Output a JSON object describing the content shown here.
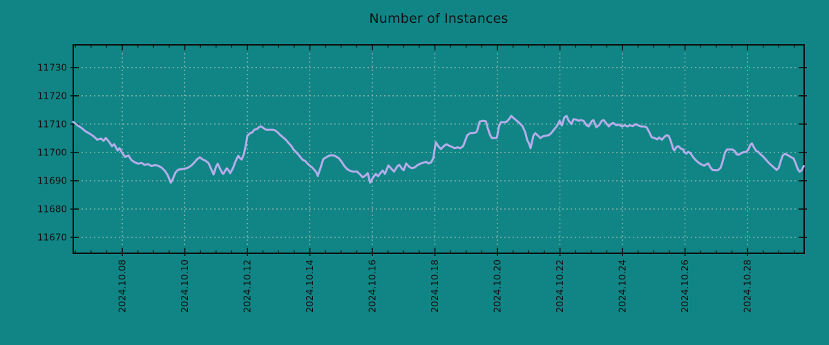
{
  "chart_data": {
    "type": "line",
    "title": "Number of Instances",
    "xlabel": "",
    "ylabel": "",
    "grid": "dashed",
    "legend": "none",
    "x_axis": {
      "time_origin": "2024.10.06",
      "t_min_days": 0.43,
      "t_max_days": 23.81,
      "major_tick_t": [
        2,
        4,
        6,
        8,
        10,
        12,
        14,
        16,
        18,
        20,
        22
      ],
      "tick_labels": [
        "2024.10.08",
        "2024.10.10",
        "2024.10.12",
        "2024.10.14",
        "2024.10.16",
        "2024.10.18",
        "2024.10.20",
        "2024.10.22",
        "2024.10.24",
        "2024.10.26",
        "2024.10.28"
      ],
      "minor_step_days": 0.5,
      "label_rotation_deg": 90
    },
    "y_axis": {
      "min": 11664.4,
      "max": 11738.0,
      "major_ticks": [
        11670,
        11680,
        11690,
        11700,
        11710,
        11720,
        11730
      ],
      "tick_labels": [
        "11670",
        "11680",
        "11690",
        "11700",
        "11710",
        "11720",
        "11730"
      ]
    },
    "series": [
      {
        "name": "instances",
        "points": [
          [
            0.43,
            11710.8
          ],
          [
            0.56,
            11709.6
          ],
          [
            0.7,
            11708.6
          ],
          [
            0.83,
            11707.4
          ],
          [
            0.96,
            11706.6
          ],
          [
            1.09,
            11705.6
          ],
          [
            1.2,
            11704.5
          ],
          [
            1.32,
            11704.9
          ],
          [
            1.4,
            11704.1
          ],
          [
            1.47,
            11705.1
          ],
          [
            1.58,
            11703.7
          ],
          [
            1.67,
            11702.2
          ],
          [
            1.74,
            11702.9
          ],
          [
            1.85,
            11700.7
          ],
          [
            1.91,
            11701.5
          ],
          [
            2.0,
            11699.8
          ],
          [
            2.09,
            11698.4
          ],
          [
            2.2,
            11698.9
          ],
          [
            2.29,
            11697.3
          ],
          [
            2.4,
            11696.5
          ],
          [
            2.51,
            11696.0
          ],
          [
            2.62,
            11696.3
          ],
          [
            2.71,
            11695.6
          ],
          [
            2.82,
            11695.9
          ],
          [
            2.93,
            11695.2
          ],
          [
            3.04,
            11695.5
          ],
          [
            3.15,
            11695.3
          ],
          [
            3.26,
            11694.6
          ],
          [
            3.37,
            11693.4
          ],
          [
            3.46,
            11691.8
          ],
          [
            3.55,
            11689.3
          ],
          [
            3.61,
            11690.5
          ],
          [
            3.7,
            11692.9
          ],
          [
            3.79,
            11693.9
          ],
          [
            3.9,
            11694.1
          ],
          [
            4.01,
            11694.3
          ],
          [
            4.1,
            11694.6
          ],
          [
            4.21,
            11695.4
          ],
          [
            4.3,
            11696.4
          ],
          [
            4.39,
            11697.6
          ],
          [
            4.48,
            11698.3
          ],
          [
            4.56,
            11697.6
          ],
          [
            4.67,
            11697.0
          ],
          [
            4.76,
            11696.2
          ],
          [
            4.85,
            11694.0
          ],
          [
            4.92,
            11692.2
          ],
          [
            5.0,
            11695.0
          ],
          [
            5.05,
            11696.0
          ],
          [
            5.12,
            11694.4
          ],
          [
            5.2,
            11692.7
          ],
          [
            5.23,
            11692.4
          ],
          [
            5.31,
            11693.9
          ],
          [
            5.34,
            11694.4
          ],
          [
            5.43,
            11693.2
          ],
          [
            5.45,
            11692.7
          ],
          [
            5.54,
            11694.4
          ],
          [
            5.6,
            11696.3
          ],
          [
            5.67,
            11698.0
          ],
          [
            5.71,
            11698.8
          ],
          [
            5.76,
            11698.0
          ],
          [
            5.82,
            11697.5
          ],
          [
            5.89,
            11699.5
          ],
          [
            5.95,
            11702.5
          ],
          [
            6.0,
            11705.9
          ],
          [
            6.09,
            11706.8
          ],
          [
            6.16,
            11707.1
          ],
          [
            6.22,
            11708.0
          ],
          [
            6.31,
            11708.3
          ],
          [
            6.38,
            11709.0
          ],
          [
            6.44,
            11709.2
          ],
          [
            6.53,
            11708.5
          ],
          [
            6.6,
            11708.0
          ],
          [
            6.66,
            11708.0
          ],
          [
            6.75,
            11708.0
          ],
          [
            6.82,
            11708.0
          ],
          [
            6.88,
            11707.8
          ],
          [
            6.97,
            11707.1
          ],
          [
            7.04,
            11706.3
          ],
          [
            7.11,
            11705.6
          ],
          [
            7.19,
            11704.9
          ],
          [
            7.26,
            11704.1
          ],
          [
            7.33,
            11703.2
          ],
          [
            7.41,
            11702.2
          ],
          [
            7.48,
            11701.0
          ],
          [
            7.55,
            11700.2
          ],
          [
            7.63,
            11699.3
          ],
          [
            7.7,
            11698.3
          ],
          [
            7.77,
            11697.4
          ],
          [
            7.86,
            11696.9
          ],
          [
            7.92,
            11696.1
          ],
          [
            7.99,
            11695.4
          ],
          [
            8.08,
            11694.6
          ],
          [
            8.14,
            11693.9
          ],
          [
            8.21,
            11692.9
          ],
          [
            8.25,
            11691.7
          ],
          [
            8.34,
            11694.5
          ],
          [
            8.43,
            11697.7
          ],
          [
            8.54,
            11698.4
          ],
          [
            8.65,
            11699.0
          ],
          [
            8.78,
            11698.9
          ],
          [
            8.92,
            11698.0
          ],
          [
            9.01,
            11696.8
          ],
          [
            9.09,
            11695.4
          ],
          [
            9.18,
            11694.2
          ],
          [
            9.27,
            11693.6
          ],
          [
            9.38,
            11693.2
          ],
          [
            9.51,
            11693.2
          ],
          [
            9.6,
            11692.3
          ],
          [
            9.69,
            11691.2
          ],
          [
            9.76,
            11691.7
          ],
          [
            9.85,
            11692.7
          ],
          [
            9.93,
            11689.3
          ],
          [
            10.02,
            11691.2
          ],
          [
            10.11,
            11692.4
          ],
          [
            10.18,
            11691.6
          ],
          [
            10.27,
            11692.9
          ],
          [
            10.33,
            11693.6
          ],
          [
            10.4,
            11692.4
          ],
          [
            10.51,
            11695.4
          ],
          [
            10.6,
            11694.3
          ],
          [
            10.69,
            11693.2
          ],
          [
            10.8,
            11695.2
          ],
          [
            10.86,
            11695.6
          ],
          [
            10.95,
            11694.2
          ],
          [
            11.0,
            11693.7
          ],
          [
            11.08,
            11696.1
          ],
          [
            11.17,
            11695.0
          ],
          [
            11.26,
            11694.4
          ],
          [
            11.35,
            11694.7
          ],
          [
            11.44,
            11695.5
          ],
          [
            11.55,
            11696.1
          ],
          [
            11.64,
            11696.4
          ],
          [
            11.72,
            11696.7
          ],
          [
            11.79,
            11696.1
          ],
          [
            11.88,
            11696.5
          ],
          [
            11.95,
            11698.0
          ],
          [
            11.99,
            11701.0
          ],
          [
            12.03,
            11703.6
          ],
          [
            12.1,
            11702.3
          ],
          [
            12.19,
            11701.2
          ],
          [
            12.28,
            11702.2
          ],
          [
            12.37,
            11702.9
          ],
          [
            12.45,
            11702.4
          ],
          [
            12.54,
            11702.0
          ],
          [
            12.63,
            11701.5
          ],
          [
            12.72,
            11701.8
          ],
          [
            12.81,
            11701.5
          ],
          [
            12.9,
            11702.2
          ],
          [
            12.94,
            11703.3
          ],
          [
            13.03,
            11706.0
          ],
          [
            13.12,
            11706.8
          ],
          [
            13.23,
            11706.9
          ],
          [
            13.32,
            11707.1
          ],
          [
            13.36,
            11708.0
          ],
          [
            13.43,
            11710.9
          ],
          [
            13.54,
            11711.2
          ],
          [
            13.63,
            11711.0
          ],
          [
            13.69,
            11708.6
          ],
          [
            13.76,
            11706.3
          ],
          [
            13.82,
            11705.1
          ],
          [
            13.91,
            11705.1
          ],
          [
            13.98,
            11705.2
          ],
          [
            14.05,
            11709.3
          ],
          [
            14.11,
            11710.7
          ],
          [
            14.2,
            11710.7
          ],
          [
            14.29,
            11710.8
          ],
          [
            14.38,
            11711.9
          ],
          [
            14.44,
            11712.9
          ],
          [
            14.53,
            11712.0
          ],
          [
            14.62,
            11711.2
          ],
          [
            14.71,
            11710.3
          ],
          [
            14.8,
            11709.3
          ],
          [
            14.89,
            11707.1
          ],
          [
            14.95,
            11704.4
          ],
          [
            15.02,
            11702.9
          ],
          [
            15.06,
            11701.5
          ],
          [
            15.15,
            11705.9
          ],
          [
            15.21,
            11706.8
          ],
          [
            15.3,
            11705.9
          ],
          [
            15.37,
            11705.1
          ],
          [
            15.46,
            11705.7
          ],
          [
            15.55,
            11705.9
          ],
          [
            15.64,
            11706.1
          ],
          [
            15.72,
            11706.8
          ],
          [
            15.81,
            11708.1
          ],
          [
            15.9,
            11709.3
          ],
          [
            15.99,
            11711.2
          ],
          [
            16.06,
            11709.5
          ],
          [
            16.14,
            11712.4
          ],
          [
            16.21,
            11712.9
          ],
          [
            16.28,
            11711.2
          ],
          [
            16.37,
            11710.0
          ],
          [
            16.43,
            11711.7
          ],
          [
            16.52,
            11711.6
          ],
          [
            16.59,
            11711.2
          ],
          [
            16.68,
            11711.4
          ],
          [
            16.76,
            11711.1
          ],
          [
            16.85,
            11709.6
          ],
          [
            16.92,
            11709.2
          ],
          [
            17.01,
            11711.0
          ],
          [
            17.07,
            11711.4
          ],
          [
            17.16,
            11708.9
          ],
          [
            17.25,
            11709.6
          ],
          [
            17.34,
            11711.2
          ],
          [
            17.4,
            11711.4
          ],
          [
            17.49,
            11710.2
          ],
          [
            17.56,
            11709.2
          ],
          [
            17.65,
            11710.2
          ],
          [
            17.71,
            11710.4
          ],
          [
            17.8,
            11709.6
          ],
          [
            17.89,
            11709.8
          ],
          [
            17.98,
            11709.2
          ],
          [
            18.07,
            11709.6
          ],
          [
            18.16,
            11709.2
          ],
          [
            18.24,
            11709.6
          ],
          [
            18.33,
            11709.3
          ],
          [
            18.42,
            11710.0
          ],
          [
            18.51,
            11709.5
          ],
          [
            18.6,
            11709.2
          ],
          [
            18.69,
            11709.2
          ],
          [
            18.77,
            11708.9
          ],
          [
            18.86,
            11707.1
          ],
          [
            18.93,
            11705.4
          ],
          [
            19.02,
            11705.1
          ],
          [
            19.11,
            11704.6
          ],
          [
            19.17,
            11705.3
          ],
          [
            19.26,
            11704.5
          ],
          [
            19.35,
            11705.6
          ],
          [
            19.42,
            11706.1
          ],
          [
            19.48,
            11705.8
          ],
          [
            19.55,
            11703.9
          ],
          [
            19.62,
            11701.3
          ],
          [
            19.66,
            11700.7
          ],
          [
            19.73,
            11702.0
          ],
          [
            19.79,
            11702.2
          ],
          [
            19.86,
            11701.4
          ],
          [
            19.93,
            11701.1
          ],
          [
            19.99,
            11700.0
          ],
          [
            20.04,
            11699.6
          ],
          [
            20.1,
            11700.2
          ],
          [
            20.17,
            11699.8
          ],
          [
            20.26,
            11698.3
          ],
          [
            20.35,
            11697.2
          ],
          [
            20.43,
            11696.4
          ],
          [
            20.52,
            11695.8
          ],
          [
            20.61,
            11695.3
          ],
          [
            20.68,
            11695.8
          ],
          [
            20.74,
            11696.1
          ],
          [
            20.81,
            11694.8
          ],
          [
            20.88,
            11693.8
          ],
          [
            20.97,
            11693.7
          ],
          [
            21.05,
            11693.7
          ],
          [
            21.14,
            11694.6
          ],
          [
            21.21,
            11697.0
          ],
          [
            21.28,
            11700.0
          ],
          [
            21.34,
            11701.0
          ],
          [
            21.43,
            11701.0
          ],
          [
            21.52,
            11701.0
          ],
          [
            21.59,
            11700.5
          ],
          [
            21.65,
            11699.3
          ],
          [
            21.72,
            11699.2
          ],
          [
            21.79,
            11699.7
          ],
          [
            21.87,
            11700.1
          ],
          [
            21.96,
            11700.2
          ],
          [
            22.03,
            11701.1
          ],
          [
            22.09,
            11702.7
          ],
          [
            22.14,
            11703.2
          ],
          [
            22.2,
            11701.9
          ],
          [
            22.27,
            11700.6
          ],
          [
            22.34,
            11700.2
          ],
          [
            22.42,
            11699.3
          ],
          [
            22.51,
            11698.4
          ],
          [
            22.6,
            11697.3
          ],
          [
            22.69,
            11696.2
          ],
          [
            22.78,
            11695.3
          ],
          [
            22.87,
            11694.4
          ],
          [
            22.93,
            11693.8
          ],
          [
            23.0,
            11694.6
          ],
          [
            23.07,
            11697.2
          ],
          [
            23.13,
            11699.0
          ],
          [
            23.2,
            11699.5
          ],
          [
            23.29,
            11699.0
          ],
          [
            23.38,
            11698.4
          ],
          [
            23.47,
            11697.9
          ],
          [
            23.53,
            11696.4
          ],
          [
            23.6,
            11694.3
          ],
          [
            23.66,
            11693.2
          ],
          [
            23.73,
            11693.7
          ],
          [
            23.8,
            11695.2
          ]
        ]
      }
    ]
  },
  "colors": {
    "background": "#118585",
    "line": "#b5adeb",
    "grid": "#c3cbc3",
    "axis": "#0d0d0d",
    "text": "#111111"
  }
}
